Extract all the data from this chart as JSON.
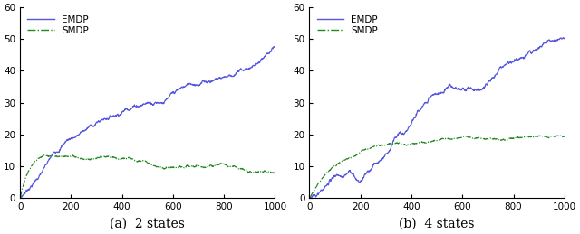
{
  "title_a": "(a)  2 states",
  "title_b": "(b)  4 states",
  "legend_emdp": "EMDP",
  "legend_smdp": "SMDP",
  "xlim": [
    0,
    1000
  ],
  "ylim": [
    0,
    60
  ],
  "yticks": [
    0,
    10,
    20,
    30,
    40,
    50,
    60
  ],
  "xticks": [
    0,
    200,
    400,
    600,
    800,
    1000
  ],
  "emdp_color": "#5555dd",
  "smdp_color": "#228822",
  "n_points": 1000,
  "figsize": [
    6.4,
    2.59
  ],
  "dpi": 100
}
